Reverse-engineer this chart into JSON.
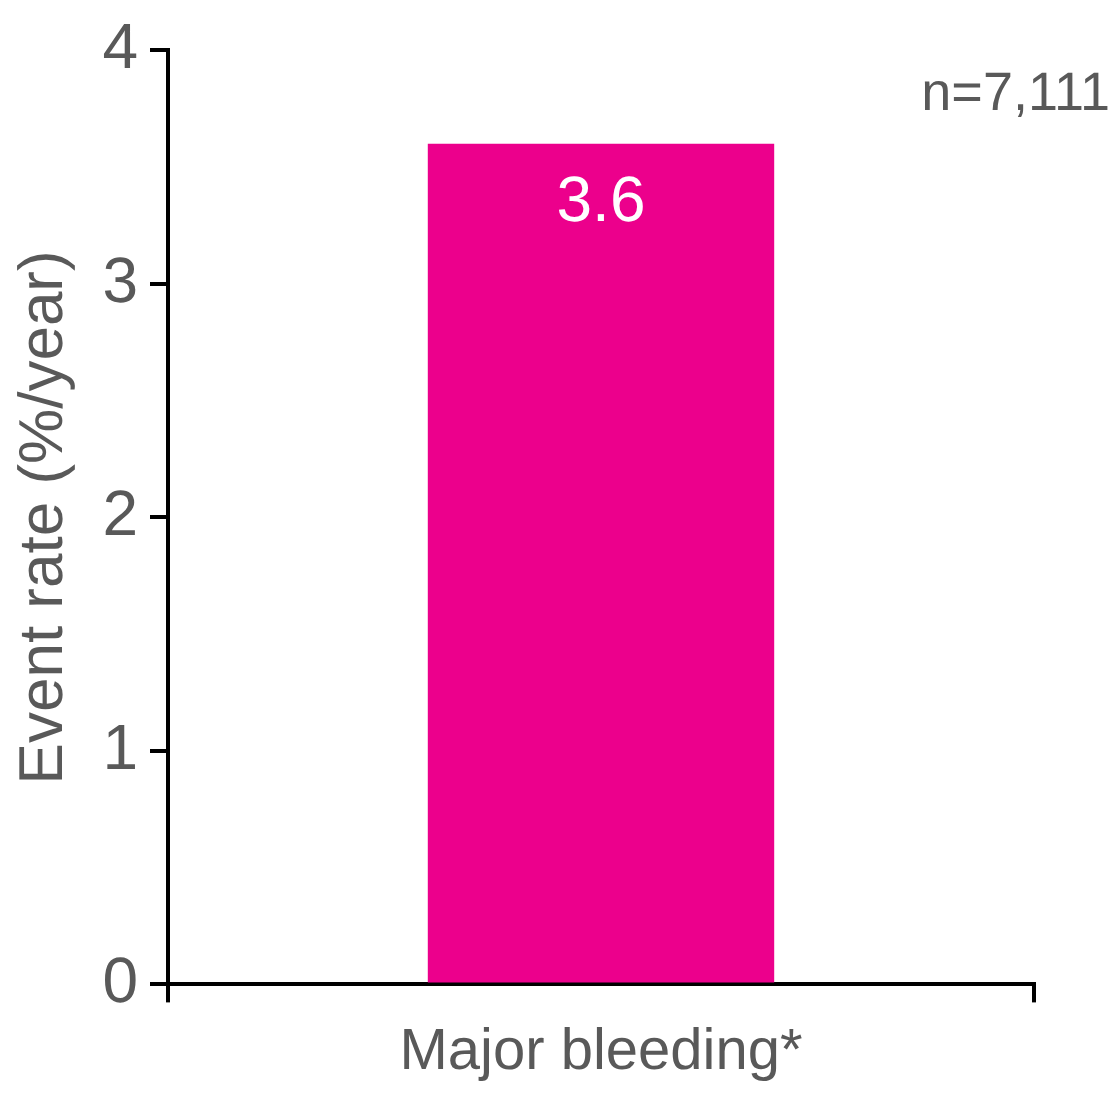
{
  "chart_data": {
    "type": "bar",
    "categories": [
      "Major bleeding*"
    ],
    "values": [
      3.6
    ],
    "color": "#ec008c",
    "ylabel": "Event rate (%/year)",
    "ylim": [
      0,
      4
    ],
    "yticks": [
      0,
      1,
      2,
      3,
      4
    ],
    "grid": false,
    "legend": false,
    "data_labels": true,
    "annotations": [
      "n=7,111"
    ]
  }
}
